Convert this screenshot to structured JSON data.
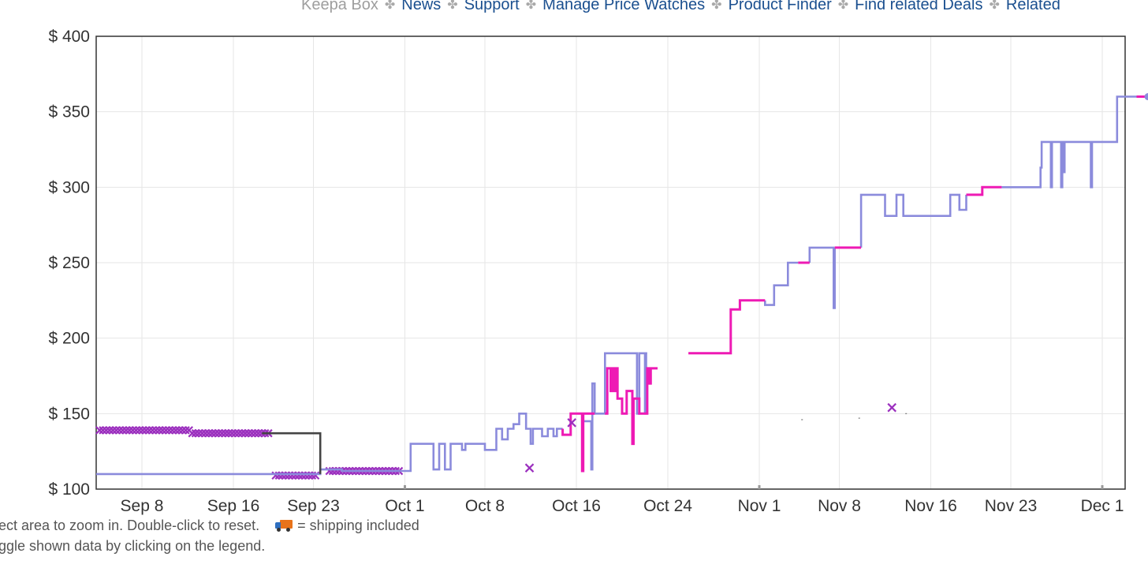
{
  "topnav": {
    "items": [
      "Keepa Box",
      "News",
      "Support",
      "Manage Price Watches",
      "Product Finder",
      "Find related Deals",
      "Related"
    ]
  },
  "footer": {
    "zoom_hint": "ect area to zoom in. Double-click to reset.",
    "shipping_note": "= shipping included",
    "legend_hint": "ggle shown data by clicking on the legend."
  },
  "chart_data": {
    "type": "line",
    "title": "",
    "xlabel": "",
    "ylabel": "",
    "x_ticks": [
      "Sep 8",
      "Sep 16",
      "Sep 23",
      "Oct 1",
      "Oct 8",
      "Oct 16",
      "Oct 24",
      "Nov 1",
      "Nov 8",
      "Nov 16",
      "Nov 23",
      "Dec 1"
    ],
    "y_ticks": [
      "$ 100",
      "$ 150",
      "$ 200",
      "$ 250",
      "$ 300",
      "$ 350",
      "$ 400"
    ],
    "xlim": [
      "Sep 4",
      "Dec 3"
    ],
    "ylim": [
      100,
      400
    ],
    "grid": true,
    "colors": {
      "lavender": "#8b8bdc",
      "magenta": "#ee1ab4",
      "dark": "#444444",
      "purple": "#9b2fbe"
    },
    "series": [
      {
        "color": "lavender",
        "points": [
          [
            0,
            110
          ],
          [
            19.6,
            110
          ],
          [
            19.6,
            113
          ],
          [
            21.5,
            113
          ],
          [
            21.5,
            112
          ],
          [
            27.5,
            112
          ],
          [
            27.5,
            130
          ],
          [
            29.5,
            130
          ],
          [
            29.5,
            113
          ],
          [
            30,
            113
          ],
          [
            30,
            130
          ],
          [
            30.5,
            130
          ],
          [
            30.5,
            113
          ],
          [
            31,
            113
          ],
          [
            31,
            130
          ],
          [
            32,
            130
          ],
          [
            32,
            126
          ],
          [
            32.3,
            126
          ],
          [
            32.3,
            130
          ],
          [
            34,
            130
          ],
          [
            34,
            126
          ],
          [
            35,
            126
          ],
          [
            35,
            140
          ],
          [
            35.5,
            140
          ],
          [
            35.5,
            133
          ],
          [
            36,
            133
          ],
          [
            36,
            140
          ],
          [
            36.5,
            140
          ],
          [
            36.5,
            143
          ],
          [
            37,
            143
          ],
          [
            37,
            150
          ],
          [
            37.6,
            150
          ],
          [
            37.6,
            140
          ],
          [
            38,
            140
          ],
          [
            38,
            130
          ],
          [
            38.2,
            130
          ],
          [
            38.2,
            140
          ],
          [
            39,
            140
          ],
          [
            39,
            135
          ],
          [
            39.5,
            135
          ],
          [
            39.5,
            140
          ],
          [
            40,
            140
          ],
          [
            40,
            135
          ],
          [
            40.3,
            135
          ],
          [
            40.3,
            140
          ],
          [
            40.8,
            140
          ]
        ]
      },
      {
        "color": "lavender",
        "points": [
          [
            42.5,
            145
          ],
          [
            43.3,
            145
          ],
          [
            43.3,
            113
          ],
          [
            43.4,
            113
          ],
          [
            43.4,
            170
          ],
          [
            43.6,
            170
          ],
          [
            43.6,
            150
          ],
          [
            44.5,
            150
          ],
          [
            44.5,
            190
          ],
          [
            47.3,
            190
          ],
          [
            47.3,
            150
          ],
          [
            47.5,
            150
          ],
          [
            47.5,
            190
          ],
          [
            48,
            190
          ],
          [
            48,
            150
          ],
          [
            48.1,
            150
          ],
          [
            48.1,
            190
          ],
          [
            48.2,
            190
          ]
        ]
      },
      {
        "color": "lavender",
        "points": [
          [
            58.5,
            225
          ],
          [
            58.5,
            222
          ],
          [
            59.3,
            222
          ],
          [
            59.3,
            235
          ],
          [
            60.5,
            235
          ],
          [
            60.5,
            250
          ],
          [
            61.4,
            250
          ]
        ]
      },
      {
        "color": "lavender",
        "points": [
          [
            62.4,
            250
          ],
          [
            62.4,
            260
          ],
          [
            64.5,
            260
          ],
          [
            64.5,
            220
          ],
          [
            64.6,
            220
          ],
          [
            64.6,
            260
          ]
        ]
      },
      {
        "color": "lavender",
        "points": [
          [
            66.9,
            260
          ],
          [
            66.9,
            295
          ],
          [
            69,
            295
          ],
          [
            69,
            281
          ],
          [
            70,
            281
          ],
          [
            70,
            295
          ],
          [
            70.6,
            295
          ],
          [
            70.6,
            281
          ],
          [
            74.7,
            281
          ],
          [
            74.7,
            295
          ],
          [
            75.5,
            295
          ],
          [
            75.5,
            285
          ],
          [
            76.1,
            285
          ],
          [
            76.1,
            295
          ]
        ]
      },
      {
        "color": "lavender",
        "points": [
          [
            79.2,
            300
          ],
          [
            82.6,
            300
          ],
          [
            82.6,
            313
          ],
          [
            82.7,
            313
          ],
          [
            82.7,
            330
          ],
          [
            83.5,
            330
          ],
          [
            83.5,
            300
          ],
          [
            83.6,
            300
          ],
          [
            83.6,
            330
          ],
          [
            84.4,
            330
          ],
          [
            84.4,
            300
          ],
          [
            84.5,
            300
          ],
          [
            84.5,
            330
          ],
          [
            84.6,
            330
          ],
          [
            84.6,
            310
          ],
          [
            84.7,
            310
          ],
          [
            84.7,
            330
          ],
          [
            87,
            330
          ],
          [
            87,
            300
          ],
          [
            87.1,
            300
          ],
          [
            87.1,
            330
          ],
          [
            89.3,
            330
          ],
          [
            89.3,
            360
          ],
          [
            91,
            360
          ]
        ]
      },
      {
        "color": "magenta",
        "points": [
          [
            40.8,
            140
          ],
          [
            40.8,
            136
          ],
          [
            41.5,
            136
          ],
          [
            41.5,
            150
          ],
          [
            42.5,
            150
          ],
          [
            42.5,
            112
          ],
          [
            42.6,
            112
          ],
          [
            42.6,
            150
          ],
          [
            43.6,
            150
          ]
        ]
      },
      {
        "color": "magenta",
        "points": [
          [
            44.5,
            150
          ],
          [
            44.7,
            150
          ],
          [
            44.7,
            180
          ],
          [
            45,
            180
          ],
          [
            45,
            165
          ],
          [
            45.1,
            165
          ],
          [
            45.1,
            180
          ],
          [
            45.3,
            180
          ],
          [
            45.3,
            165
          ],
          [
            45.4,
            165
          ],
          [
            45.4,
            180
          ],
          [
            45.6,
            180
          ],
          [
            45.6,
            160
          ],
          [
            46,
            160
          ],
          [
            46,
            150
          ],
          [
            46.4,
            150
          ],
          [
            46.4,
            165
          ],
          [
            46.9,
            165
          ],
          [
            46.9,
            130
          ],
          [
            47,
            130
          ],
          [
            47,
            160
          ],
          [
            47.5,
            160
          ],
          [
            47.5,
            150
          ],
          [
            48.2,
            150
          ],
          [
            48.2,
            180
          ],
          [
            48.3,
            180
          ],
          [
            48.3,
            170
          ],
          [
            48.5,
            170
          ],
          [
            48.5,
            180
          ],
          [
            49.1,
            180
          ]
        ]
      },
      {
        "color": "magenta",
        "points": [
          [
            51.8,
            190
          ],
          [
            55.5,
            190
          ],
          [
            55.5,
            219
          ],
          [
            56.3,
            219
          ],
          [
            56.3,
            225
          ],
          [
            58.5,
            225
          ]
        ]
      },
      {
        "color": "magenta",
        "points": [
          [
            61.4,
            250
          ],
          [
            62.4,
            250
          ]
        ]
      },
      {
        "color": "magenta",
        "points": [
          [
            64.6,
            260
          ],
          [
            66.9,
            260
          ]
        ]
      },
      {
        "color": "magenta",
        "points": [
          [
            76.1,
            295
          ],
          [
            77.5,
            295
          ],
          [
            77.5,
            300
          ],
          [
            79.2,
            300
          ]
        ]
      },
      {
        "color": "magenta",
        "points": [
          [
            91,
            360
          ],
          [
            92,
            360
          ]
        ]
      },
      {
        "color": "dark",
        "points": [
          [
            14.5,
            137
          ],
          [
            19.6,
            137
          ],
          [
            19.6,
            110
          ]
        ]
      }
    ],
    "marker_bands": [
      {
        "color": "purple",
        "x_start": 0.3,
        "x_end": 8.4,
        "y": 139
      },
      {
        "color": "purple",
        "x_start": 8.4,
        "x_end": 15.3,
        "y": 137
      },
      {
        "color": "purple",
        "x_start": 15.7,
        "x_end": 19.2,
        "y": 109
      },
      {
        "color": "purple",
        "x_start": 20.4,
        "x_end": 26.6,
        "y": 112
      }
    ],
    "markers": [
      {
        "color": "purple",
        "x": 37.9,
        "y": 114
      },
      {
        "color": "purple",
        "x": 41.6,
        "y": 144
      },
      {
        "color": "purple",
        "x": 69.6,
        "y": 154
      }
    ]
  }
}
